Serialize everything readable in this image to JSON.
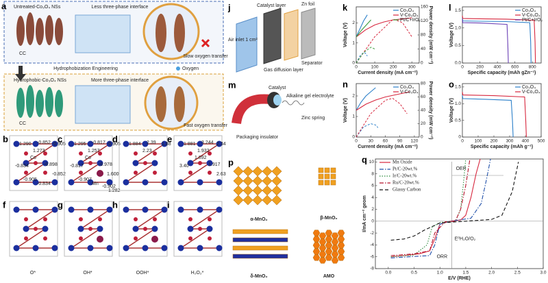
{
  "panels": {
    "a": {
      "label": "a",
      "untreated": "Untreated-Co₃O₄ NSs",
      "less": "Less three-phase interface",
      "cc_top": "CC",
      "slow": "Slow oxygen transfer",
      "engineering": "Hydrophobization Engineering",
      "oxygen": "Oxygen",
      "hydrophobic": "Hydrophobic-Co₃O₄ NSs",
      "more": "More three-phase interface",
      "cc_bottom": "CC",
      "fast": "Fast oxygen transfer"
    },
    "structures": [
      {
        "label": "b",
        "numbers": [
          "1.290",
          "-0.852",
          "-0.905",
          "1.273",
          "Co",
          "-0.834",
          "-0.898",
          "-0.852",
          "-0.905",
          "-0.834"
        ]
      },
      {
        "label": "c",
        "numbers": [
          "1.295",
          "-0.817",
          "-0.905",
          "1.257",
          "Co",
          "-0.817",
          "-0.978",
          "1.600",
          "-0.907",
          "Mn",
          "-0.902",
          "1.282"
        ]
      },
      {
        "label": "d",
        "numbers": [
          "1.884",
          "2.39",
          "1.88",
          "2.23"
        ]
      },
      {
        "label": "e",
        "numbers": [
          "1.881",
          "3.244",
          "2.34",
          "1.932",
          "1.892",
          "3.40",
          "1.917",
          "2.63"
        ]
      },
      {
        "label": "f",
        "numbers": []
      },
      {
        "label": "g",
        "numbers": []
      },
      {
        "label": "h",
        "numbers": []
      },
      {
        "label": "i",
        "numbers": []
      }
    ],
    "captions": [
      "O*",
      "OH*",
      "OOH*",
      "H₂O₂*"
    ],
    "j": {
      "label": "j",
      "catalyst": "Catalyst layer",
      "zn": "Zn foil",
      "air": "Air inlet 1 cm²",
      "separator": "Separator",
      "gdl": "Gas diffusion layer"
    },
    "m": {
      "label": "m",
      "catalyst": "Catalyst",
      "gel": "Alkaline gel electrolyte",
      "spring": "Zinc spring",
      "insulator": "Packaging insulator"
    },
    "p": {
      "label": "p",
      "alpha": "α-MnO₂",
      "beta": "β-MnO₂",
      "delta": "δ-MnO₂",
      "amo": "AMO"
    }
  },
  "chart_data": [
    {
      "type": "line",
      "label": "k",
      "xlabel": "Current density (mA cm⁻²)",
      "ylabel": "Voltage (V)",
      "y2label": "Power density (mW cm⁻²)",
      "xlim": [
        0,
        340
      ],
      "xticks": [
        0,
        100,
        200,
        300
      ],
      "ylim": [
        0,
        2.8
      ],
      "yticks": [
        0,
        1,
        2
      ],
      "y2lim": [
        0,
        160
      ],
      "y2ticks": [
        0,
        40,
        80,
        120,
        160
      ],
      "legend": "upper right",
      "series": [
        {
          "name": "Co₃O₄",
          "color": "#2a7fc9",
          "x": [
            0,
            20,
            40,
            60
          ],
          "values": [
            1.3,
            1.7,
            2.1,
            2.4
          ],
          "power_x": [
            0,
            20,
            40,
            50,
            60
          ],
          "power": [
            0,
            20,
            30,
            28,
            20
          ]
        },
        {
          "name": "V-Co₃O₄",
          "color": "#d7263d",
          "x": [
            0,
            50,
            100,
            150,
            200,
            250,
            300
          ],
          "values": [
            1.3,
            1.65,
            1.9,
            2.05,
            2.15,
            2.2,
            2.25
          ],
          "power_x": [
            0,
            100,
            200,
            250,
            300
          ],
          "power": [
            0,
            75,
            125,
            115,
            75
          ]
        },
        {
          "name": "Pt/C+IrO₂",
          "color": "#3a9a3a",
          "x": [
            0,
            30,
            60,
            80
          ],
          "values": [
            1.3,
            1.65,
            1.95,
            2.15
          ],
          "power_x": [
            0,
            40,
            80,
            100
          ],
          "power": [
            0,
            30,
            45,
            40
          ]
        }
      ]
    },
    {
      "type": "line",
      "label": "l",
      "xlabel": "Specific capacity (mAh gZn⁻¹)",
      "ylabel": "Voltage (V)",
      "xlim": [
        0,
        900
      ],
      "xticks": [
        0,
        200,
        400,
        600,
        800
      ],
      "ylim": [
        0,
        1.6
      ],
      "yticks": [
        {
          "value": 0,
          "label": "0.0"
        },
        0.5,
        {
          "value": 1,
          "label": "1.0"
        },
        1.5
      ],
      "legend": "upper right",
      "series": [
        {
          "name": "Co₃O₄",
          "color": "#2a7fc9",
          "x": [
            0,
            5,
            200,
            500,
            770,
            780,
            785
          ],
          "values": [
            1.3,
            1.2,
            1.19,
            1.18,
            1.15,
            0.6,
            0
          ]
        },
        {
          "name": "V-Co₃O₄",
          "color": "#d7263d",
          "x": [
            0,
            5,
            200,
            500,
            820,
            830,
            835
          ],
          "values": [
            1.35,
            1.27,
            1.26,
            1.25,
            1.22,
            0.6,
            0
          ]
        },
        {
          "name": "Pt/C+IrO₂",
          "color": "#6a3fb5",
          "x": [
            0,
            5,
            200,
            510,
            520,
            525
          ],
          "values": [
            1.25,
            1.15,
            1.14,
            1.1,
            0.5,
            0
          ]
        }
      ]
    },
    {
      "type": "line",
      "label": "n",
      "xlabel": "Current density (mA cm⁻²)",
      "ylabel": "Voltage (V)",
      "y2label": "Power density (mW cm⁻²)",
      "xlim": [
        0,
        130
      ],
      "xticks": [
        0,
        30,
        60,
        90,
        120
      ],
      "ylim": [
        0,
        2.6
      ],
      "yticks": [
        0,
        1,
        2
      ],
      "y2lim": [
        0,
        80
      ],
      "y2ticks": [
        0,
        20,
        40,
        60,
        80
      ],
      "legend": "upper right",
      "series": [
        {
          "name": "Co₃O₄",
          "color": "#2a7fc9",
          "x": [
            0,
            10,
            20,
            30,
            40
          ],
          "values": [
            1.3,
            1.7,
            2.0,
            2.2,
            2.4
          ],
          "power_x": [
            0,
            15,
            30,
            40,
            45
          ],
          "power": [
            0,
            15,
            20,
            18,
            14
          ]
        },
        {
          "name": "V-Co₃O₄",
          "color": "#d7263d",
          "x": [
            0,
            20,
            40,
            60,
            80,
            100,
            110
          ],
          "values": [
            1.3,
            1.6,
            1.8,
            1.95,
            2.05,
            2.15,
            2.2
          ],
          "power_x": [
            0,
            30,
            60,
            75,
            90,
            105
          ],
          "power": [
            0,
            35,
            55,
            58,
            50,
            35
          ]
        }
      ]
    },
    {
      "type": "line",
      "label": "o",
      "xlabel": "Specific capacity (mAh g⁻¹)",
      "ylabel": "Voltage (V)",
      "xlim": [
        0,
        500
      ],
      "xticks": [
        0,
        100,
        200,
        300,
        400,
        500
      ],
      "ylim": [
        0,
        1.6
      ],
      "yticks": [
        0,
        0.5,
        {
          "value": 1,
          "label": "1.0"
        },
        1.5
      ],
      "legend": "upper right",
      "series": [
        {
          "name": "Co₃O₄",
          "color": "#2a7fc9",
          "x": [
            0,
            3,
            150,
            310,
            318,
            322
          ],
          "values": [
            1.25,
            1.15,
            1.13,
            1.1,
            0.5,
            0
          ]
        },
        {
          "name": "V-Co₃O₄",
          "color": "#d7263d",
          "x": [
            0,
            3,
            200,
            395,
            402,
            406
          ],
          "values": [
            1.35,
            1.26,
            1.24,
            1.2,
            0.5,
            0
          ]
        }
      ]
    },
    {
      "type": "line",
      "label": "q",
      "xlabel": "E/V (RHE)",
      "ylabel": "I/mA cm⁻² geom",
      "xlim": [
        -0.25,
        3
      ],
      "xticks": [
        {
          "value": 0,
          "label": "0.0"
        },
        0.5,
        {
          "value": 1,
          "label": "1.0"
        },
        1.5,
        {
          "value": 2,
          "label": "2.0"
        },
        2.5,
        {
          "value": 3,
          "label": "3.0"
        }
      ],
      "ylim": [
        -8,
        10.5
      ],
      "yticks": [
        -8,
        -6,
        -4,
        -2,
        0,
        2,
        4,
        6,
        8,
        10
      ],
      "legend": "upper left",
      "reference_x": 1.23,
      "annotations": [
        "OER",
        "ORR",
        "E⁰H₂O/O₂"
      ],
      "series": [
        {
          "name": "Mn Oxide",
          "color": "#d7263d",
          "linestyle": "solid",
          "x": [
            0.05,
            0.3,
            0.6,
            0.8,
            0.9,
            1.0,
            1.2,
            1.4,
            1.5,
            1.6,
            1.7,
            1.78
          ],
          "values": [
            -6,
            -5.8,
            -5.5,
            -5,
            -3,
            -0.5,
            0,
            0.2,
            1,
            4,
            8,
            10.5
          ]
        },
        {
          "name": "Pt/C-20wt.%",
          "color": "#1f4fa8",
          "linestyle": "dashdot",
          "x": [
            0.05,
            0.4,
            0.8,
            0.9,
            1.0,
            1.2,
            1.6,
            1.8,
            1.9,
            1.98
          ],
          "values": [
            -6.2,
            -6,
            -5.8,
            -4,
            -0.5,
            0,
            0.5,
            3,
            7,
            10.5
          ]
        },
        {
          "name": "Ir/C-20wt.%",
          "color": "#2a8a3a",
          "linestyle": "dotted",
          "x": [
            0.05,
            0.5,
            0.75,
            0.85,
            1.0,
            1.3,
            1.4,
            1.45,
            1.5
          ],
          "values": [
            -6,
            -5.7,
            -4,
            -1,
            -0.2,
            0,
            2,
            6,
            10.5
          ]
        },
        {
          "name": "Ru/C-20wt.%",
          "color": "#b5122b",
          "linestyle": "dashdot",
          "x": [
            0.05,
            0.5,
            0.8,
            0.9,
            1.1,
            1.3,
            1.4,
            1.5,
            1.58
          ],
          "values": [
            -5.8,
            -5.5,
            -5,
            -2,
            -0.1,
            0,
            2,
            6,
            10.5
          ]
        },
        {
          "name": "Glassy Carbon",
          "color": "#111111",
          "linestyle": "dashed",
          "x": [
            0.05,
            0.3,
            0.5,
            0.7,
            1.0,
            1.5,
            2.0,
            2.2,
            2.4,
            2.52
          ],
          "values": [
            -3.2,
            -3,
            -2.5,
            -1.5,
            -0.3,
            0,
            0.3,
            1,
            5,
            10
          ]
        }
      ]
    }
  ]
}
